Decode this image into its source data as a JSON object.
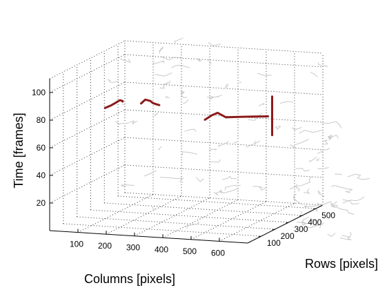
{
  "chart_data": {
    "type": "3d-line",
    "title": "",
    "xlabel": "Columns [pixels]",
    "ylabel": "Rows [pixels]",
    "zlabel": "Time [frames]",
    "xlim": [
      0,
      700
    ],
    "ylim": [
      0,
      550
    ],
    "zlim": [
      0,
      110
    ],
    "xticks": [
      "100",
      "200",
      "300",
      "400",
      "500",
      "600"
    ],
    "yticks": [
      "100",
      "200",
      "300",
      "400",
      "500"
    ],
    "zticks": [
      "20",
      "40",
      "60",
      "80",
      "100"
    ],
    "grid": true,
    "colors": {
      "trajectory": "#8b1a1a",
      "background_edges": "#c8c8c8",
      "grid": "#333333"
    },
    "series": [
      {
        "values": [
          [
            150,
            95,
            86
          ],
          [
            170,
            95,
            88
          ],
          [
            185,
            100,
            90
          ],
          [
            200,
            100,
            92
          ],
          [
            205,
            110,
            91
          ],
          [
            200,
            120,
            90
          ]
        ]
      },
      {
        "values": [
          [
            270,
            110,
            90
          ],
          [
            285,
            110,
            93
          ],
          [
            300,
            115,
            92
          ],
          [
            305,
            125,
            90
          ],
          [
            315,
            130,
            89
          ],
          [
            320,
            140,
            88
          ]
        ]
      },
      {
        "values": [
          [
            520,
            60,
            84
          ],
          [
            540,
            70,
            87
          ],
          [
            560,
            70,
            89
          ],
          [
            570,
            80,
            87
          ],
          [
            580,
            90,
            85
          ],
          [
            600,
            120,
            84
          ],
          [
            650,
            160,
            83
          ],
          [
            680,
            190,
            82
          ]
        ]
      },
      {
        "values": [
          [
            690,
            200,
            96
          ],
          [
            690,
            200,
            85
          ],
          [
            690,
            200,
            75
          ],
          [
            690,
            200,
            68
          ]
        ]
      }
    ]
  }
}
